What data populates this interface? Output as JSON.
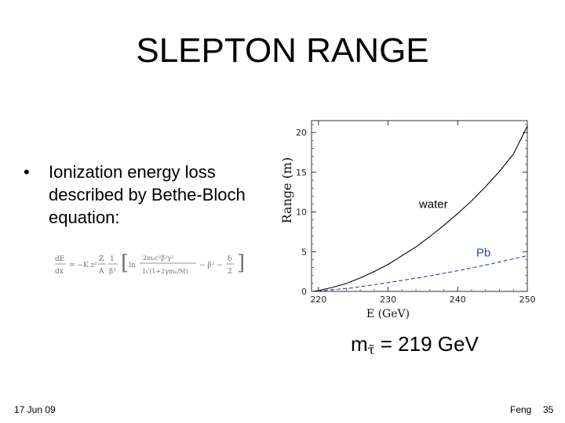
{
  "slide": {
    "title": "SLEPTON RANGE",
    "bullet": "Ionization energy loss described by Bethe-Bloch equation:",
    "bullet_symbol": "•",
    "mass_label": {
      "prefix": "m",
      "symbol": "τ̃",
      "rest": " = 219 GeV"
    },
    "footer": {
      "date": "17 Jun 09",
      "author": "Feng",
      "page": "35"
    }
  },
  "chart_data": {
    "type": "line",
    "xlabel": "E  (GeV)",
    "ylabel": "Range  (m)",
    "xlim": [
      219,
      250
    ],
    "ylim": [
      0,
      21.5
    ],
    "xticks": [
      220,
      230,
      240,
      250
    ],
    "yticks": [
      0,
      5,
      10,
      15,
      20
    ],
    "series": [
      {
        "name": "water",
        "color": "#000000",
        "dash": "solid",
        "x": [
          219,
          220,
          222,
          224,
          226,
          228,
          230,
          232,
          234,
          236,
          238,
          240,
          242,
          244,
          246,
          248,
          250
        ],
        "y": [
          0,
          0.1,
          0.5,
          1.0,
          1.7,
          2.5,
          3.4,
          4.5,
          5.6,
          6.9,
          8.3,
          9.8,
          11.4,
          13.2,
          15.1,
          17.3,
          20.8
        ]
      },
      {
        "name": "Pb",
        "color": "#2a3fb0",
        "dash": "dashed",
        "x": [
          219,
          220,
          225,
          230,
          235,
          240,
          245,
          250
        ],
        "y": [
          0,
          0.05,
          0.45,
          1.1,
          1.8,
          2.6,
          3.5,
          4.5
        ]
      }
    ]
  }
}
